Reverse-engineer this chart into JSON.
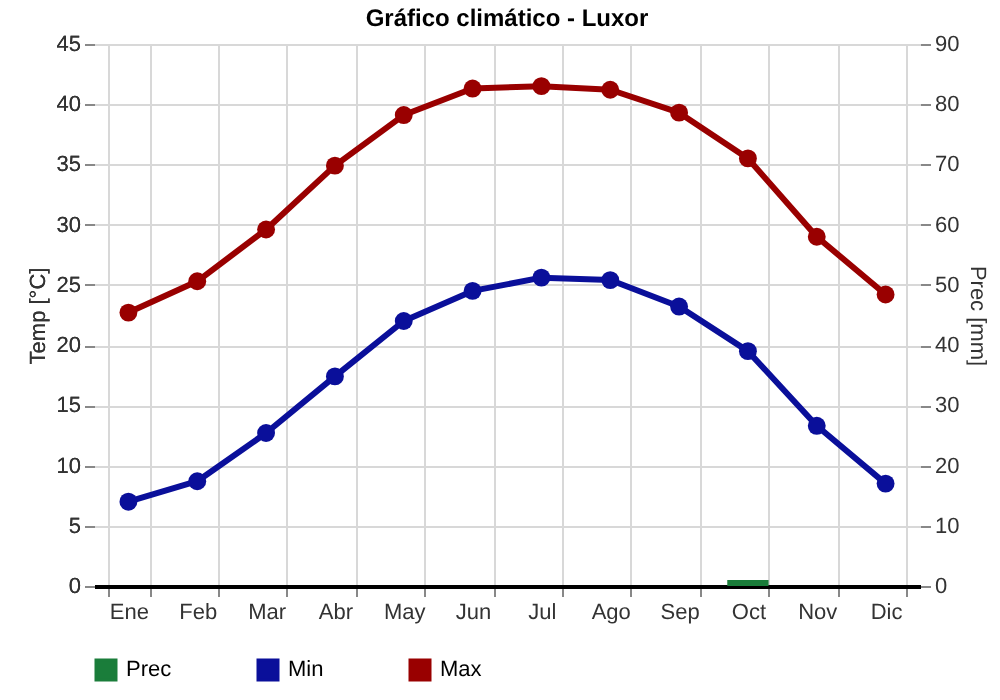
{
  "chart_data": {
    "type": "line",
    "title": "Gráfico climático - Luxor",
    "ylabel": "Temp [°C]",
    "y2label": "Prec [mm]",
    "categories": [
      "Ene",
      "Feb",
      "Mar",
      "Abr",
      "May",
      "Jun",
      "Jul",
      "Ago",
      "Sep",
      "Oct",
      "Nov",
      "Dic"
    ],
    "series": [
      {
        "name": "Prec",
        "type": "bar",
        "axis": "y2",
        "color": "#1a7d3a",
        "values": [
          0,
          0,
          0,
          0,
          0,
          0,
          0,
          0,
          0,
          1,
          0,
          0
        ]
      },
      {
        "name": "Min",
        "color": "#0a0f9a",
        "values": [
          7,
          8.7,
          12.7,
          17.4,
          22,
          24.5,
          25.6,
          25.4,
          23.2,
          19.5,
          13.3,
          8.5
        ]
      },
      {
        "name": "Max",
        "color": "#990000",
        "values": [
          22.7,
          25.3,
          29.6,
          34.9,
          39.1,
          41.3,
          41.5,
          41.2,
          39.3,
          35.5,
          29,
          24.2
        ]
      }
    ],
    "ylim": [
      0,
      45
    ],
    "yticks": [
      0,
      5,
      10,
      15,
      20,
      25,
      30,
      35,
      40,
      45
    ],
    "y2lim": [
      0,
      90
    ],
    "y2ticks": [
      0,
      10,
      20,
      30,
      40,
      50,
      60,
      70,
      80,
      90
    ],
    "grid": true,
    "legend": "bottom",
    "marker": "circle",
    "line_style": "solid"
  }
}
